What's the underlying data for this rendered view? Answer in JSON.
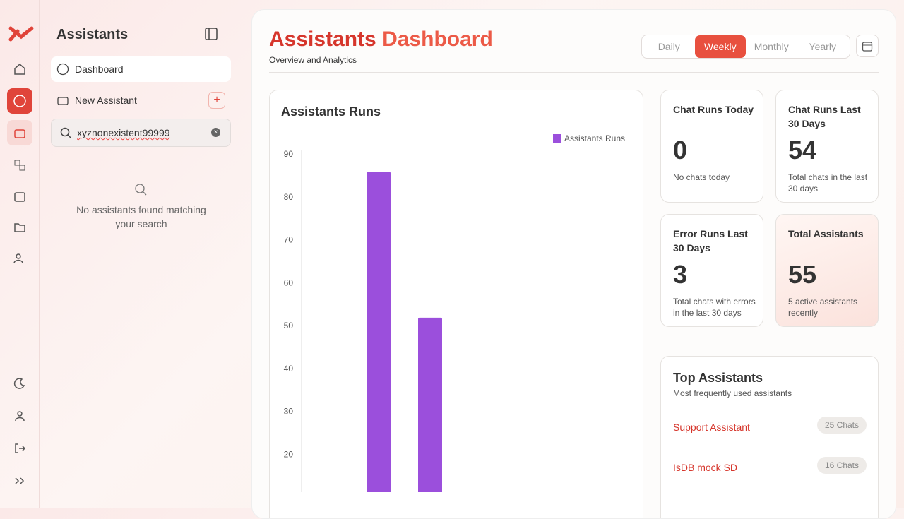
{
  "sidebar": {
    "title": "Assistants",
    "nav": [
      "Dashboard",
      "New Assistant"
    ],
    "search_query": "xyznonexistent99999",
    "empty_message": "No assistants found matching your search"
  },
  "header": {
    "title": [
      "Assistants",
      "Dashboard"
    ],
    "subtitle": "Overview and Analytics",
    "periods": [
      "Daily",
      "Weekly",
      "Monthly",
      "Yearly"
    ],
    "active_period": "Weekly"
  },
  "stats": [
    {
      "label": "Chat Runs Today",
      "value": 0,
      "note": "No chats today"
    },
    {
      "label": "Chat Runs Last 30 Days",
      "value": 54,
      "note": "Total chats in the last 30 days"
    },
    {
      "label": "Error Runs Last 30 Days",
      "value": 3,
      "note": "Total chats with errors in the last 30 days"
    },
    {
      "label": "Total Assistants",
      "value": 55,
      "note": "5 active assistants recently"
    }
  ],
  "top_assistants": {
    "title": "Top Assistants",
    "subtitle": "Most frequently used assistants",
    "items": [
      {
        "name": "Support Assistant",
        "count": "25 Chats"
      },
      {
        "name": "IsDB mock SD",
        "count": "16 Chats"
      }
    ]
  },
  "chart_data": {
    "type": "bar",
    "title": "Assistants Runs",
    "categories": [
      null,
      null
    ],
    "series": [
      {
        "name": "Assistants Runs",
        "color": "#9b4fdc",
        "values": [
          86,
          52
        ]
      }
    ],
    "ylim": [
      10,
      90
    ],
    "yticks": [
      20,
      30,
      40,
      50,
      60,
      70,
      80,
      90
    ],
    "legend": "top-right"
  }
}
